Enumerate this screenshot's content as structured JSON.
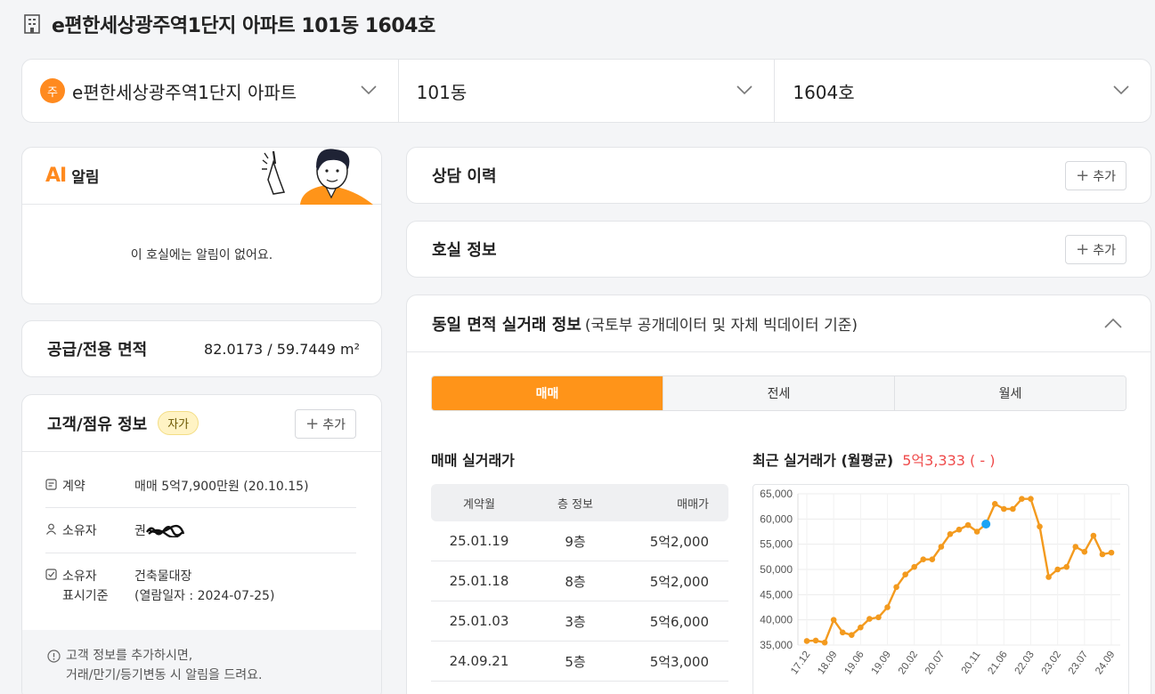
{
  "page": {
    "title": "e편한세상광주역1단지 아파트 101동 1604호"
  },
  "selector": {
    "badge": "주",
    "complex": "e편한세상광주역1단지 아파트",
    "building": "101동",
    "unit": "1604호"
  },
  "alert": {
    "ai_logo": "AI",
    "label": "알림",
    "empty_text": "이 호실에는 알림이 없어요."
  },
  "area": {
    "label": "공급/전용 면적",
    "value": "82.0173 / 59.7449 m²"
  },
  "customer": {
    "label": "고객/점유 정보",
    "badge": "자가",
    "add_label": "추가",
    "rows": [
      {
        "key": "계약",
        "value": "매매 5억7,900만원 (20.10.15)"
      },
      {
        "key": "소유자",
        "value": "권"
      },
      {
        "key": "소유자\n표시기준",
        "value": "건축물대장\n(열람일자 : 2024-07-25)"
      }
    ],
    "note_line1": "고객 정보를 추가하시면,",
    "note_line2": "거래/만기/등기변동 시 알림을 드려요."
  },
  "consult": {
    "label": "상담 이력",
    "add_label": "추가"
  },
  "room": {
    "label": "호실 정보",
    "add_label": "추가"
  },
  "deal": {
    "title": "동일 면적 실거래 정보",
    "subtitle": "(국토부 공개데이터 및 자체 빅데이터 기준)",
    "tabs": [
      "매매",
      "전세",
      "월세"
    ],
    "active_tab": "매매",
    "table_title": "매매 실거래가",
    "columns": [
      "계약월",
      "층 정보",
      "매매가"
    ],
    "rows": [
      [
        "25.01.19",
        "9층",
        "5억2,000"
      ],
      [
        "25.01.18",
        "8층",
        "5억2,000"
      ],
      [
        "25.01.03",
        "3층",
        "5억6,000"
      ],
      [
        "24.09.21",
        "5층",
        "5억3,000"
      ]
    ],
    "chart_title": "최근 실거래가 (월평균)",
    "recent_price": "5억3,333 ( - )"
  },
  "colors": {
    "accent": "#ff9419",
    "line": "#f39a1e",
    "highlight_point": "#1aa3f5",
    "price_red": "#ef4b4b"
  },
  "chart_data": {
    "type": "line",
    "xlabel": "",
    "ylabel": "",
    "ylim": [
      35000,
      65000
    ],
    "y_ticks": [
      35000,
      40000,
      45000,
      50000,
      55000,
      60000,
      65000
    ],
    "x_tick_labels": [
      "17.12",
      "18.09",
      "19.06",
      "19.09",
      "20.02",
      "20.07",
      "20.11",
      "21.06",
      "22.03",
      "23.02",
      "23.07",
      "24.09"
    ],
    "highlight_index": 20,
    "series": [
      {
        "values": [
          35800,
          35900,
          35500,
          40000,
          37500,
          37000,
          38500,
          40200,
          40500,
          42500,
          46500,
          49000,
          50500,
          52000,
          52000,
          54500,
          57000,
          57900,
          58800,
          57500,
          59000,
          63000,
          62000,
          62000,
          64000,
          64000,
          58500,
          48500,
          50000,
          50500,
          54500,
          53500,
          56700,
          53000,
          53333
        ]
      }
    ]
  }
}
